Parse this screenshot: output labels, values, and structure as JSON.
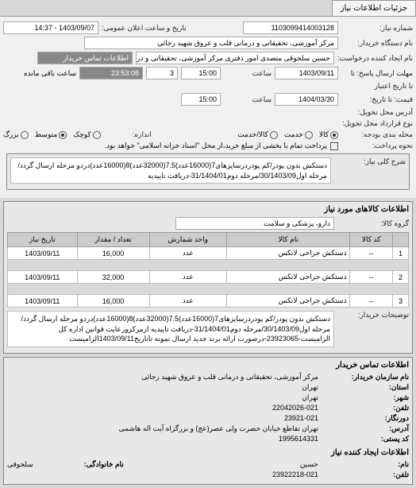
{
  "tabs": {
    "main": "جزئیات اطلاعات نیاز"
  },
  "form": {
    "need_number_label": "شماره نیاز:",
    "need_number": "1103099414003128",
    "announce_label": "تاریخ و ساعت اعلان عمومی:",
    "announce_value": "1403/09/07 - 14:37",
    "buyer_org_label": "نام دستگاه خریدار:",
    "buyer_org": "مرکز آموزشی، تحقیقاتی و درمانی قلب و عروق شهید رجائی",
    "requester_label": "نام ایجاد کننده درخواست:",
    "requester": "حسین سلجوقی متصدی امور دفتری مرکز آموزشی، تحقیقاتی و درمانی قلب و ع",
    "contact_link": "اطلاعات تماس خریدار",
    "deadline_send_label": "مهلت ارسال پاسخ: تا",
    "deadline_send_date": "1403/09/11",
    "deadline_send_time_label": "ساعت",
    "deadline_send_time": "15:00",
    "remaining_count": "3",
    "remaining_time": "23:53:08",
    "remaining_label": "ساعت باقی مانده",
    "validity_label": "تا تاریخ اعتبار",
    "price_until_label": "قیمت: تا تاریخ:",
    "price_until_date": "1404/03/30",
    "price_until_time_label": "ساعت",
    "price_until_time": "15:00",
    "delivery_addr_label": "آدرس محل تحویل:",
    "agreement_type_label": "نوع قرارداد محل تحویل:",
    "budget_type_label": "محله بندی بودجه:",
    "budget_options": {
      "goods": "کالا",
      "service": "خدمت",
      "both": "کالا/خدمت"
    },
    "size_label": "اندازه:",
    "size_options": {
      "small": "کوچک",
      "medium": "متوسط",
      "large": "بزرگ"
    },
    "payment_type_label": "نحوه پرداخت:",
    "payment_note": "پرداخت تمام یا بخشی از مبلغ خرید،از محل \"اسناد خزانه اسلامی\" خواهد بود.",
    "general_title_label": "شرح کلی نیاز:",
    "general_title": "دستکش بدون پودر/کم پودردرسایزهای7(16000عدد)7.5(32000عدد)8(16000عدد)دردو مرحله ارسال گردد/مرحله اول30/1403/09/مرحله دوم31/1404/01-دریافت تاییدیه"
  },
  "goods_section": {
    "header": "اطلاعات کالاهای مورد نیاز",
    "group_label": "گروه کالا:",
    "group_value": "دارو، پزشکی و سلامت",
    "columns": [
      "",
      "کد کالا",
      "نام کالا",
      "واحد شمارش",
      "تعداد / مقدار",
      "تاریخ نیاز"
    ],
    "rows": [
      [
        "1",
        "--",
        "دستکش جراحی لاتکس",
        "عدد",
        "16,000",
        "1403/09/11"
      ],
      [
        "2",
        "--",
        "دستکش جراحی لاتکس",
        "عدد",
        "32,000",
        "1403/09/11"
      ],
      [
        "3",
        "--",
        "دستکش جراحی لاتکس",
        "عدد",
        "16,000",
        "1403/09/11"
      ]
    ],
    "explain_label": "توضیحات خریدار:",
    "explain_text": "دستکش بدون پودر/کم پودردرسایزهای7(16000عدد)7.5(32000عدد)8(16000عدد)دردو مرحله ارسال گردد/مرحله اول30/1403/09/مرحله دوم31/1404/01-دریافت تاییدیه ازمرکزورعایت قوانین اداره کل الزامیست-23923065-درصورت ارائه برند جدید ارسال نمونه تاتاریخ1403/09/11الزامیست"
  },
  "contact_section": {
    "header": "اطلاعات تماس خریدار",
    "org_label": "نام سازمان خریدار:",
    "org_value": "مرکز آموزشی، تحقیقاتی و درمانی قلب و عروق شهید رجائی",
    "province_label": "استان:",
    "province_value": "تهران",
    "city_label": "شهر:",
    "city_value": "تهران",
    "phone_label": "تلفن:",
    "phone_value": "22042026-021",
    "fax_label": "دورنگار:",
    "fax_value": "23921-021",
    "address_label": "آدرس:",
    "address_value": "تهران تقاطع خیابان حضرت ولی عصر(عج) و بزرگراه آیت اله هاشمی",
    "postal_label": "کد پستی:",
    "postal_value": "1995614331",
    "creator_header": "اطلاعات ایجاد کننده نیاز",
    "name_label": "نام:",
    "name_value": "حسین",
    "family_label": "نام خانوادگی:",
    "family_value": "سلجوقی",
    "phone2_label": "تلفن:",
    "phone2_value": "23922218-021"
  }
}
